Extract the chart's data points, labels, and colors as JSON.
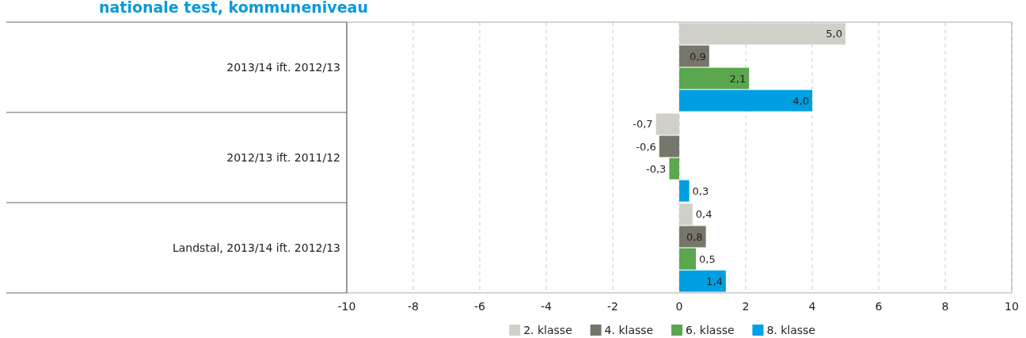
{
  "chart_data": {
    "type": "bar",
    "orientation": "horizontal",
    "title": "nationale test, kommuneniveau",
    "categories": [
      "2013/14 ift. 2012/13",
      "2012/13 ift. 2011/12",
      "Landstal, 2013/14 ift. 2012/13"
    ],
    "series": [
      {
        "name": "2. klasse",
        "color": "#d0d0c8",
        "values": [
          5.0,
          -0.7,
          0.4
        ],
        "value_labels": [
          "5,0",
          "-0,7",
          "0,4"
        ]
      },
      {
        "name": "4. klasse",
        "color": "#77766a",
        "values": [
          0.9,
          -0.6,
          0.8
        ],
        "value_labels": [
          "0,9",
          "-0,6",
          "0,8"
        ]
      },
      {
        "name": "6. klasse",
        "color": "#5aa74f",
        "values": [
          2.1,
          -0.3,
          0.5
        ],
        "value_labels": [
          "2,1",
          "-0,3",
          "0,5"
        ]
      },
      {
        "name": "8. klasse",
        "color": "#009fe3",
        "values": [
          4.0,
          0.3,
          1.4
        ],
        "value_labels": [
          "4,0",
          "0,3",
          "1,4"
        ]
      }
    ],
    "xlim": [
      -10,
      10
    ],
    "xticks": [
      -10,
      -8,
      -6,
      -4,
      -2,
      0,
      2,
      4,
      6,
      8,
      10
    ],
    "grid": "x",
    "legend": "bottom"
  }
}
